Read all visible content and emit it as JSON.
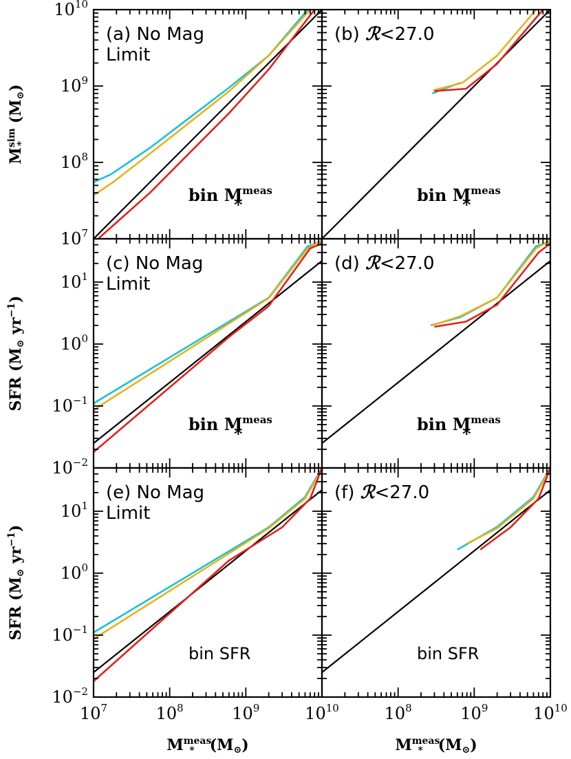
{
  "colors": {
    "cyan": "#19c2d2",
    "orange": "#e8b11c",
    "red": "#e3201b",
    "black": "#000000"
  },
  "chart_data": {
    "type": "line",
    "x_axis": {
      "scale": "log",
      "range": [
        10000000,
        10000000000
      ],
      "ticks": [
        {
          "value": 10000000,
          "base": "10",
          "exp": "7"
        },
        {
          "value": 100000000,
          "base": "10",
          "exp": "8"
        },
        {
          "value": 1000000000,
          "base": "10",
          "exp": "9"
        },
        {
          "value": 10000000000,
          "base": "10",
          "exp": "10"
        }
      ],
      "label_main": "M",
      "label_sub": "*",
      "label_sup": "meas",
      "label_units": "(M",
      "label_units_sub": "⊙",
      "label_close": ")"
    },
    "rows": [
      {
        "y_scale": "log",
        "y_range": [
          10000000,
          10000000000
        ],
        "y_ticks": [
          {
            "value": 10000000,
            "base": "10",
            "exp": "7"
          },
          {
            "value": 100000000,
            "base": "10",
            "exp": "8"
          },
          {
            "value": 1000000000,
            "base": "10",
            "exp": "9"
          },
          {
            "value": 10000000000,
            "base": "10",
            "exp": "10"
          }
        ],
        "y_label_main": "M",
        "y_label_sub": "*",
        "y_label_sup": "sim",
        "y_label_units": "(M",
        "y_label_units_sub": "⊙",
        "y_label_close": ")"
      },
      {
        "y_scale": "log",
        "y_range": [
          0.01,
          50
        ],
        "y_ticks": [
          {
            "value": 0.01,
            "base": "10",
            "exp": "−2"
          },
          {
            "value": 0.1,
            "base": "10",
            "exp": "−1"
          },
          {
            "value": 1,
            "base": "10",
            "exp": "0"
          },
          {
            "value": 10,
            "base": "10",
            "exp": "1"
          }
        ],
        "y_label_main": "SFR",
        "y_label_units": "(M",
        "y_label_units_sub": "⊙",
        "y_label_yr": " yr",
        "y_label_yr_sup": "−1",
        "y_label_close": ")"
      },
      {
        "y_scale": "log",
        "y_range": [
          0.01,
          50
        ],
        "y_ticks": [
          {
            "value": 0.01,
            "base": "10",
            "exp": "−2"
          },
          {
            "value": 0.1,
            "base": "10",
            "exp": "−1"
          },
          {
            "value": 1,
            "base": "10",
            "exp": "0"
          },
          {
            "value": 10,
            "base": "10",
            "exp": "1"
          }
        ],
        "y_label_main": "SFR",
        "y_label_units": "(M",
        "y_label_units_sub": "⊙",
        "y_label_yr": " yr",
        "y_label_yr_sup": "−1",
        "y_label_close": ")"
      }
    ],
    "panels": [
      {
        "id": "a",
        "row": 0,
        "col": 0,
        "label_line1": "(a) No Mag",
        "label_line2": "Limit",
        "bin_text": "bin M",
        "bin_sub": "*",
        "bin_sup": "meas",
        "series": [
          {
            "color": "black",
            "points": [
              [
                10000000,
                10000000
              ],
              [
                10000000000,
                10000000000
              ]
            ]
          },
          {
            "color": "cyan",
            "points": [
              [
                10000000,
                55000000
              ],
              [
                17000000,
                70000000
              ],
              [
                55000000,
                155000000
              ],
              [
                600000000,
                950000000
              ],
              [
                2000000000,
                2500000000
              ],
              [
                6500000000,
                10000000000
              ]
            ]
          },
          {
            "color": "orange",
            "points": [
              [
                10000000,
                37000000
              ],
              [
                18000000,
                55000000
              ],
              [
                55000000,
                130000000
              ],
              [
                600000000,
                850000000
              ],
              [
                2000000000,
                2500000000
              ],
              [
                7000000000,
                10000000000
              ]
            ]
          },
          {
            "color": "red",
            "points": [
              [
                11500000,
                10000000
              ],
              [
                55000000,
                40000000
              ],
              [
                600000000,
                440000000
              ],
              [
                2000000000,
                1650000000
              ],
              [
                8000000000,
                10000000000
              ]
            ]
          }
        ]
      },
      {
        "id": "b",
        "row": 0,
        "col": 1,
        "label_line1": "(b) ",
        "label_script": "ℛ",
        "label_line1_rest": "<27.0",
        "bin_text": "bin M",
        "bin_sub": "*",
        "bin_sup": "meas",
        "series": [
          {
            "color": "black",
            "points": [
              [
                10000000,
                10000000
              ],
              [
                10000000000,
                10000000000
              ]
            ]
          },
          {
            "color": "cyan",
            "points": [
              [
                280000000,
                800000000
              ],
              [
                650000000,
                1100000000
              ]
            ]
          },
          {
            "color": "orange",
            "points": [
              [
                290000000,
                880000000
              ],
              [
                700000000,
                1100000000
              ],
              [
                2000000000,
                2500000000
              ],
              [
                6500000000,
                10000000000
              ]
            ]
          },
          {
            "color": "red",
            "points": [
              [
                300000000,
                860000000
              ],
              [
                780000000,
                920000000
              ],
              [
                2000000000,
                1950000000
              ],
              [
                8000000000,
                10000000000
              ]
            ]
          }
        ]
      },
      {
        "id": "c",
        "row": 1,
        "col": 0,
        "label_line1": "(c) No Mag",
        "label_line2": "Limit",
        "bin_text": "bin M",
        "bin_sub": "*",
        "bin_sup": "meas",
        "series": [
          {
            "color": "black",
            "points": [
              [
                10000000,
                0.025
              ],
              [
                10000000000,
                22
              ]
            ]
          },
          {
            "color": "cyan",
            "points": [
              [
                10000000,
                0.11
              ],
              [
                2000000000,
                5.6
              ],
              [
                6500000000,
                38
              ],
              [
                10000000000,
                45
              ]
            ]
          },
          {
            "color": "orange",
            "points": [
              [
                10000000,
                0.085
              ],
              [
                12000000,
                0.1
              ],
              [
                2000000000,
                5.5
              ],
              [
                6500000000,
                35
              ],
              [
                10000000000,
                48
              ]
            ]
          },
          {
            "color": "red",
            "points": [
              [
                10000000,
                0.018
              ],
              [
                600000000,
                1.3
              ],
              [
                2000000000,
                4.1
              ],
              [
                7000000000,
                35
              ],
              [
                10000000000,
                42
              ]
            ]
          }
        ]
      },
      {
        "id": "d",
        "row": 1,
        "col": 1,
        "label_line1": "(d) ",
        "label_script": "ℛ",
        "label_line1_rest": "<27.0",
        "bin_text": "bin M",
        "bin_sub": "*",
        "bin_sup": "meas",
        "series": [
          {
            "color": "black",
            "points": [
              [
                10000000,
                0.025
              ],
              [
                10000000000,
                22
              ]
            ]
          },
          {
            "color": "cyan",
            "points": [
              [
                270000000,
                2.0
              ],
              [
                650000000,
                2.7
              ],
              [
                2000000000,
                5.6
              ],
              [
                6500000000,
                38
              ],
              [
                10000000000,
                45
              ]
            ]
          },
          {
            "color": "orange",
            "points": [
              [
                280000000,
                2.0
              ],
              [
                650000000,
                2.8
              ],
              [
                2000000000,
                5.6
              ],
              [
                6500000000,
                35
              ],
              [
                10000000000,
                48
              ]
            ]
          },
          {
            "color": "red",
            "points": [
              [
                300000000,
                1.9
              ],
              [
                780000000,
                2.3
              ],
              [
                2000000000,
                4.3
              ],
              [
                7000000000,
                30
              ],
              [
                10000000000,
                42
              ]
            ]
          }
        ]
      },
      {
        "id": "e",
        "row": 2,
        "col": 0,
        "label_line1": "(e) No Mag",
        "label_line2": "Limit",
        "bin_text": "bin SFR",
        "series": [
          {
            "color": "black",
            "points": [
              [
                10000000,
                0.025
              ],
              [
                10000000000,
                22
              ]
            ]
          },
          {
            "color": "cyan",
            "points": [
              [
                10000000,
                0.11
              ],
              [
                2000000000,
                5.5
              ],
              [
                6000000000,
                17
              ],
              [
                10000000000,
                50
              ]
            ]
          },
          {
            "color": "orange",
            "points": [
              [
                10000000,
                0.085
              ],
              [
                12000000,
                0.1
              ],
              [
                2000000000,
                5.3
              ],
              [
                6000000000,
                16
              ],
              [
                10000000000,
                48
              ]
            ]
          },
          {
            "color": "red",
            "points": [
              [
                10000000,
                0.018
              ],
              [
                600000000,
                1.6
              ],
              [
                3000000000,
                5.5
              ],
              [
                7000000000,
                16
              ],
              [
                10000000000,
                50
              ]
            ]
          }
        ]
      },
      {
        "id": "f",
        "row": 2,
        "col": 1,
        "label_line1": "(f) ",
        "label_script": "ℛ",
        "label_line1_rest": "<27.0",
        "bin_text": "bin SFR",
        "series": [
          {
            "color": "black",
            "points": [
              [
                10000000,
                0.025
              ],
              [
                10000000000,
                22
              ]
            ]
          },
          {
            "color": "cyan",
            "points": [
              [
                600000000,
                2.4
              ],
              [
                2000000000,
                5.6
              ],
              [
                6000000000,
                17
              ],
              [
                10000000000,
                50
              ]
            ]
          },
          {
            "color": "orange",
            "points": [
              [
                800000000,
                3.0
              ],
              [
                2000000000,
                5.3
              ],
              [
                6000000000,
                16
              ],
              [
                10000000000,
                48
              ]
            ]
          },
          {
            "color": "red",
            "points": [
              [
                1200000000,
                2.4
              ],
              [
                3000000000,
                5.5
              ],
              [
                7000000000,
                16
              ],
              [
                10000000000,
                50
              ]
            ]
          }
        ]
      }
    ]
  }
}
